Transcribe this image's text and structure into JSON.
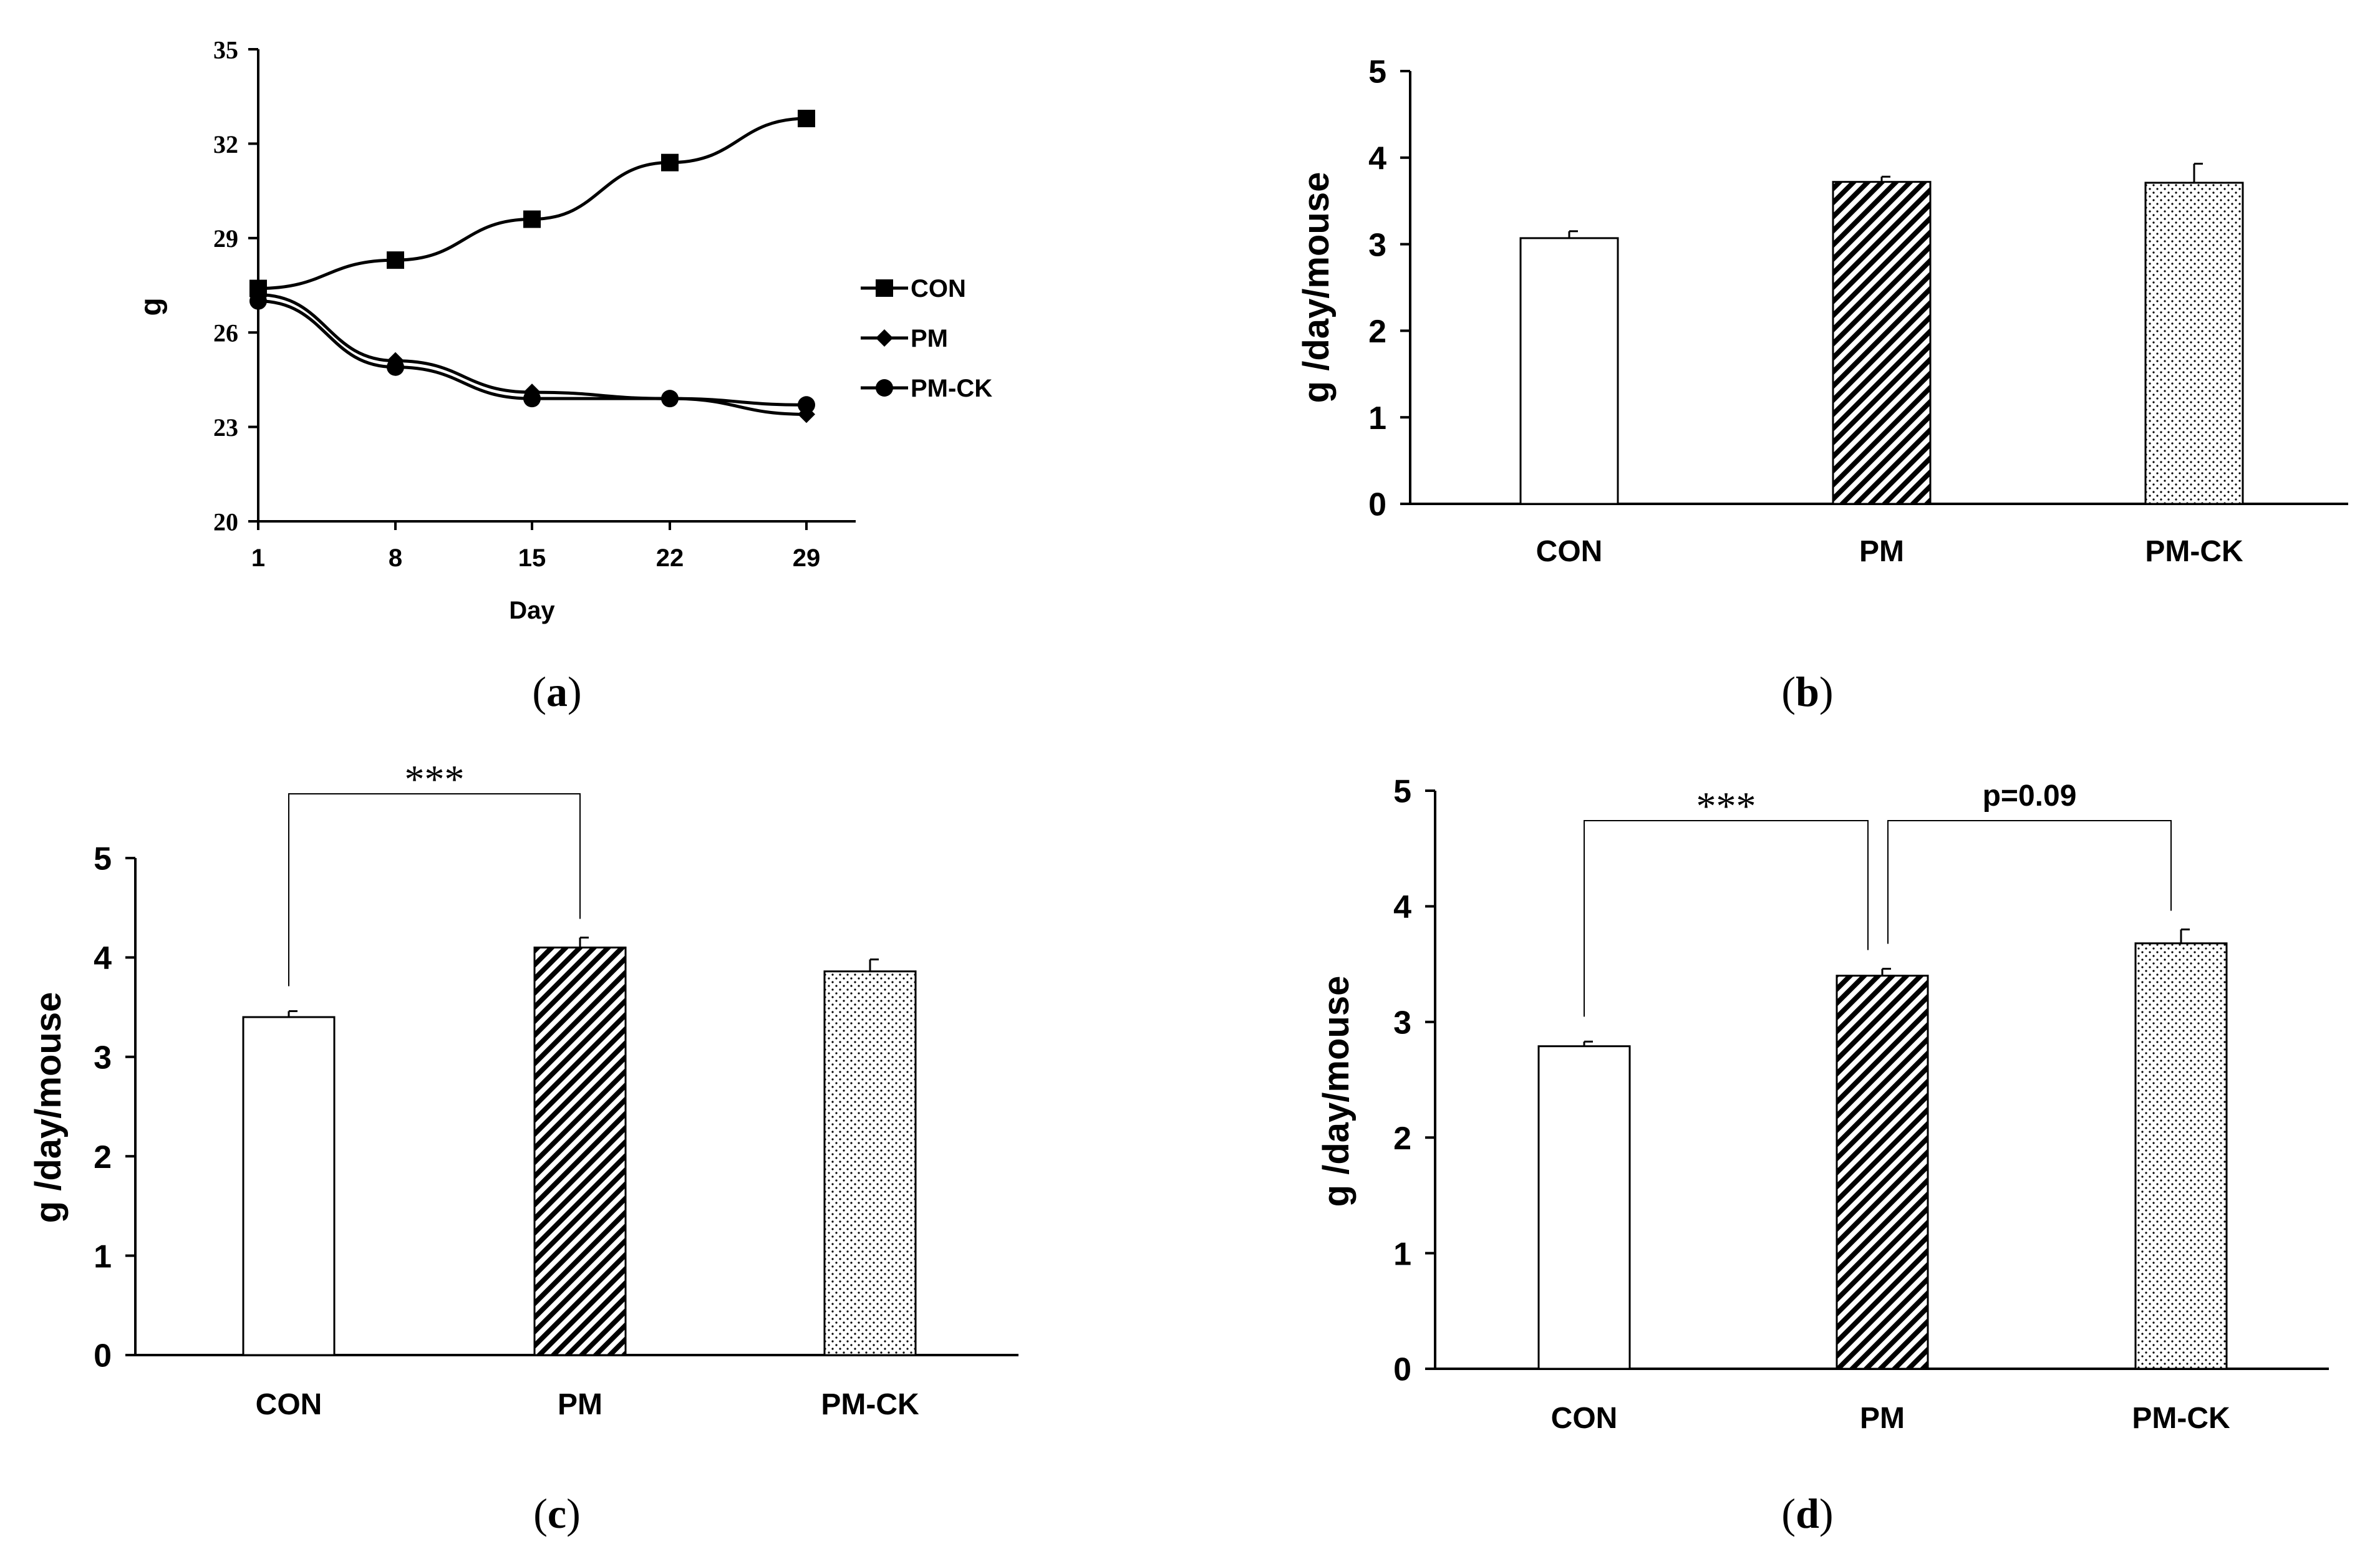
{
  "chart_data": [
    {
      "panel": "a",
      "type": "line",
      "caption": "(a)",
      "caption_letter": "a",
      "xlabel": "Day",
      "ylabel": "g",
      "x": [
        1,
        8,
        15,
        22,
        29
      ],
      "x_ticks": [
        "1",
        "8",
        "15",
        "22",
        "29"
      ],
      "ylim": [
        20,
        35
      ],
      "y_ticks": [
        "20",
        "23",
        "26",
        "29",
        "32",
        "35"
      ],
      "series": [
        {
          "name": "CON",
          "marker": "square",
          "values": [
            27.4,
            28.3,
            29.6,
            31.4,
            32.8
          ]
        },
        {
          "name": "PM",
          "marker": "diamond",
          "values": [
            27.2,
            25.1,
            24.1,
            23.9,
            23.4
          ]
        },
        {
          "name": "PM-CK",
          "marker": "circle",
          "values": [
            27.0,
            24.9,
            23.9,
            23.9,
            23.7
          ]
        }
      ],
      "legend": [
        "CON",
        "PM",
        "PM-CK"
      ]
    },
    {
      "panel": "b",
      "type": "bar",
      "caption": "(b)",
      "caption_letter": "b",
      "ylabel": "g /day/mouse",
      "categories": [
        "CON",
        "PM",
        "PM-CK"
      ],
      "values": [
        3.07,
        3.72,
        3.71
      ],
      "errors": [
        0.08,
        0.06,
        0.22
      ],
      "patterns": [
        "plain",
        "hatch",
        "dots"
      ],
      "ylim": [
        0,
        5
      ],
      "y_ticks": [
        "0",
        "1",
        "2",
        "3",
        "4",
        "5"
      ],
      "annotations": []
    },
    {
      "panel": "c",
      "type": "bar",
      "caption": "(c)",
      "caption_letter": "c",
      "ylabel": "g /day/mouse",
      "categories": [
        "CON",
        "PM",
        "PM-CK"
      ],
      "values": [
        3.4,
        4.1,
        3.86
      ],
      "errors": [
        0.06,
        0.1,
        0.12
      ],
      "patterns": [
        "plain",
        "hatch",
        "dots"
      ],
      "ylim": [
        0,
        5
      ],
      "y_ticks": [
        "0",
        "1",
        "2",
        "3",
        "4",
        "5"
      ],
      "annotations": [
        {
          "from": 0,
          "to": 1,
          "label": "***"
        }
      ]
    },
    {
      "panel": "d",
      "type": "bar",
      "caption": "(d)",
      "caption_letter": "d",
      "ylabel": "g /day/mouse",
      "categories": [
        "CON",
        "PM",
        "PM-CK"
      ],
      "values": [
        2.79,
        3.4,
        3.68
      ],
      "errors": [
        0.04,
        0.06,
        0.12
      ],
      "patterns": [
        "plain",
        "hatch",
        "dots"
      ],
      "ylim": [
        0,
        5
      ],
      "y_ticks": [
        "0",
        "1",
        "2",
        "3",
        "4",
        "5"
      ],
      "annotations": [
        {
          "from": 0,
          "to": 1,
          "label": "***"
        },
        {
          "from": 1,
          "to": 2,
          "label": "p=0.09"
        }
      ]
    }
  ]
}
